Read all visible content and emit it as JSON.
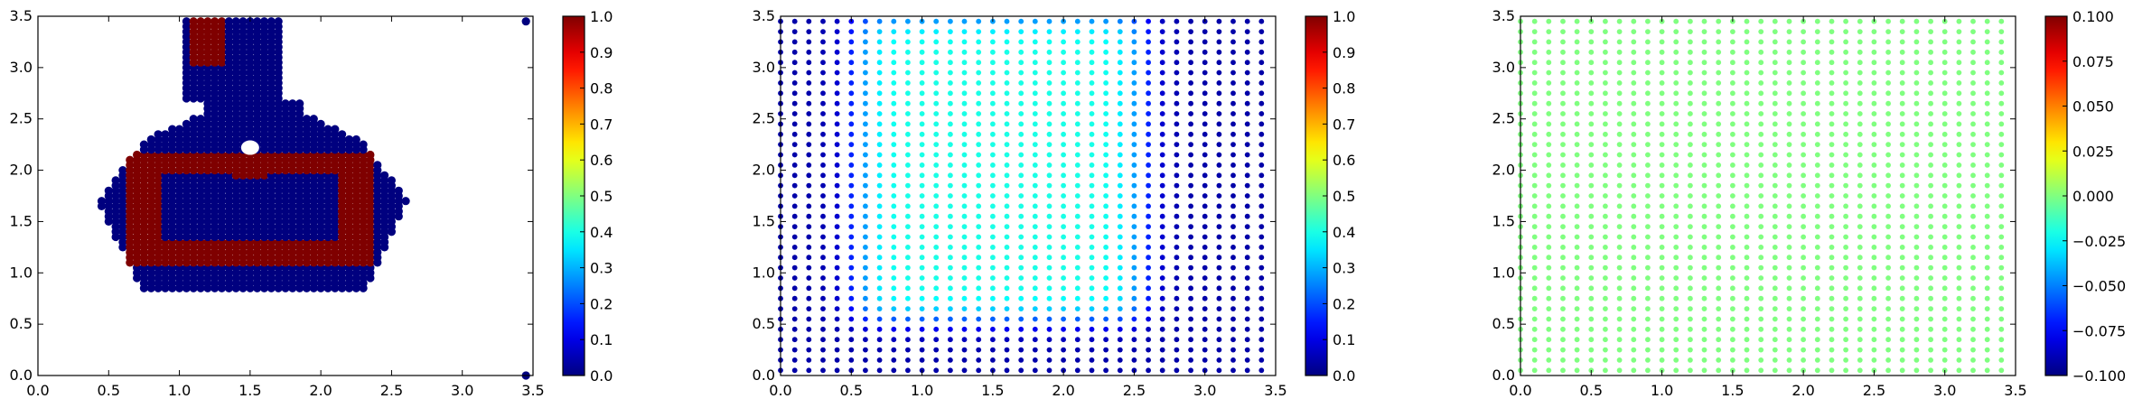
{
  "chart_data": [
    {
      "type": "scatter",
      "title": "",
      "xlabel": "",
      "ylabel": "",
      "xlim": [
        0.0,
        3.5
      ],
      "ylim": [
        0.0,
        3.5
      ],
      "x_ticks": [
        "0.0",
        "0.5",
        "1.0",
        "1.5",
        "2.0",
        "2.5",
        "3.0",
        "3.5"
      ],
      "y_ticks": [
        "0.0",
        "0.5",
        "1.0",
        "1.5",
        "2.0",
        "2.5",
        "3.0",
        "3.5"
      ],
      "colorbar": {
        "min": 0.0,
        "max": 1.0,
        "ticks": [
          "0.0",
          "0.1",
          "0.2",
          "0.3",
          "0.4",
          "0.5",
          "0.6",
          "0.7",
          "0.8",
          "0.9",
          "1.0"
        ]
      },
      "colormap": "jet",
      "marker": "large-dots",
      "description_of_values": "binary field: 1.0 on a closed ring band (1.1-2.0 y) and a small neck block (x 1.1-1.3, y 3.05-3.45); 0.0 inside the flask-shaped region and at isolated points (3.45,3.45) and (3.45,0.0)",
      "regions": {
        "flask_neck": {
          "x": [
            1.05,
            1.7
          ],
          "y": [
            2.7,
            3.45
          ]
        },
        "flask_body": {
          "x": [
            0.45,
            2.6
          ],
          "y": [
            0.85,
            2.7
          ]
        },
        "ring_band_value": 1.0,
        "outside_value": 0.0
      }
    },
    {
      "type": "scatter",
      "title": "",
      "xlabel": "",
      "ylabel": "",
      "xlim": [
        0.0,
        3.5
      ],
      "ylim": [
        0.0,
        3.5
      ],
      "x_ticks": [
        "0.0",
        "0.5",
        "1.0",
        "1.5",
        "2.0",
        "2.5",
        "3.0",
        "3.5"
      ],
      "y_ticks": [
        "0.0",
        "0.5",
        "1.0",
        "1.5",
        "2.0",
        "2.5",
        "3.0",
        "3.5"
      ],
      "colorbar": {
        "min": 0.0,
        "max": 1.0,
        "ticks": [
          "0.0",
          "0.1",
          "0.2",
          "0.3",
          "0.4",
          "0.5",
          "0.6",
          "0.7",
          "0.8",
          "0.9",
          "1.0"
        ]
      },
      "colormap": "jet",
      "marker": "small-dots",
      "grid": {
        "x_start": 0.0,
        "x_end": 3.4,
        "y_start": 0.05,
        "y_end": 3.45,
        "spacing": 0.1
      },
      "description_of_values": "smooth bump: ~0.05 near edges, rising to ~0.4 in the central region x 0.6-2.6, y 0.6-3.4"
    },
    {
      "type": "scatter",
      "title": "",
      "xlabel": "",
      "ylabel": "",
      "xlim": [
        0.0,
        3.5
      ],
      "ylim": [
        0.0,
        3.5
      ],
      "x_ticks": [
        "0.0",
        "0.5",
        "1.0",
        "1.5",
        "2.0",
        "2.5",
        "3.0",
        "3.5"
      ],
      "y_ticks": [
        "0.0",
        "0.5",
        "1.0",
        "1.5",
        "2.0",
        "2.5",
        "3.0",
        "3.5"
      ],
      "colorbar": {
        "min": -0.1,
        "max": 0.1,
        "ticks": [
          "−0.100",
          "−0.075",
          "−0.050",
          "−0.025",
          "0.000",
          "0.025",
          "0.050",
          "0.075",
          "0.100"
        ]
      },
      "colormap": "jet",
      "marker": "small-dots",
      "grid": {
        "x_start": 0.0,
        "x_end": 3.4,
        "y_start": 0.05,
        "y_end": 3.45,
        "spacing": 0.1
      },
      "description_of_values": "uniform field equal to 0.0 at every point"
    }
  ]
}
